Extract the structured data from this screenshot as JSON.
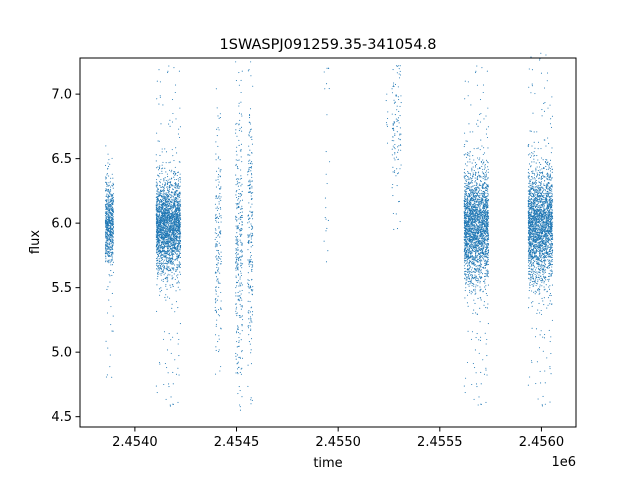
{
  "chart_data": {
    "type": "scatter",
    "title": "1SWASPJ091259.35-341054.8",
    "xlabel": "time",
    "ylabel": "flux",
    "x_offset_label": "1e6",
    "xlim": [
      2453730,
      2456170
    ],
    "ylim": [
      4.42,
      7.28
    ],
    "x_ticks": [
      {
        "value": 2454000,
        "label": "2.4540"
      },
      {
        "value": 2454500,
        "label": "2.4545"
      },
      {
        "value": 2455000,
        "label": "2.4550"
      },
      {
        "value": 2455500,
        "label": "2.4555"
      },
      {
        "value": 2456000,
        "label": "2.4560"
      }
    ],
    "y_ticks": [
      {
        "value": 4.5,
        "label": "4.5"
      },
      {
        "value": 5.0,
        "label": "5.0"
      },
      {
        "value": 5.5,
        "label": "5.5"
      },
      {
        "value": 6.0,
        "label": "6.0"
      },
      {
        "value": 6.5,
        "label": "6.5"
      },
      {
        "value": 7.0,
        "label": "7.0"
      }
    ],
    "grid": false,
    "legend": "none",
    "marker_color": "#1f77b4",
    "series": [
      {
        "clusters": [
          {
            "x_range": [
              2453855,
              2453895
            ],
            "center": 5.99,
            "spread": 0.16,
            "count": 650,
            "min": 4.7,
            "max": 6.7
          },
          {
            "x_range": [
              2454105,
              2454225
            ],
            "center": 5.98,
            "spread": 0.18,
            "count": 2400,
            "min": 4.55,
            "max": 7.25
          },
          {
            "x_range": [
              2454395,
              2454425
            ],
            "center": 5.9,
            "spread": 0.45,
            "count": 180,
            "min": 4.6,
            "max": 7.1
          },
          {
            "x_range": [
              2454495,
              2454530
            ],
            "center": 5.85,
            "spread": 0.5,
            "count": 320,
            "min": 4.55,
            "max": 7.25
          },
          {
            "x_range": [
              2454555,
              2454580
            ],
            "center": 5.95,
            "spread": 0.5,
            "count": 220,
            "min": 4.6,
            "max": 7.25
          },
          {
            "x_range": [
              2454930,
              2454960
            ],
            "center": 6.4,
            "spread": 0.5,
            "count": 22,
            "min": 5.7,
            "max": 7.2
          },
          {
            "x_range": [
              2455235,
              2455250
            ],
            "center": 6.8,
            "spread": 0.12,
            "count": 8,
            "min": 6.5,
            "max": 7.0
          },
          {
            "x_range": [
              2455265,
              2455310
            ],
            "center": 6.7,
            "spread": 0.28,
            "count": 110,
            "min": 5.9,
            "max": 7.22
          },
          {
            "x_range": [
              2455620,
              2455740
            ],
            "center": 5.98,
            "spread": 0.22,
            "count": 2400,
            "min": 4.55,
            "max": 7.25
          },
          {
            "x_range": [
              2455935,
              2456055
            ],
            "center": 5.98,
            "spread": 0.22,
            "count": 2400,
            "min": 4.55,
            "max": 7.35
          }
        ]
      }
    ]
  }
}
